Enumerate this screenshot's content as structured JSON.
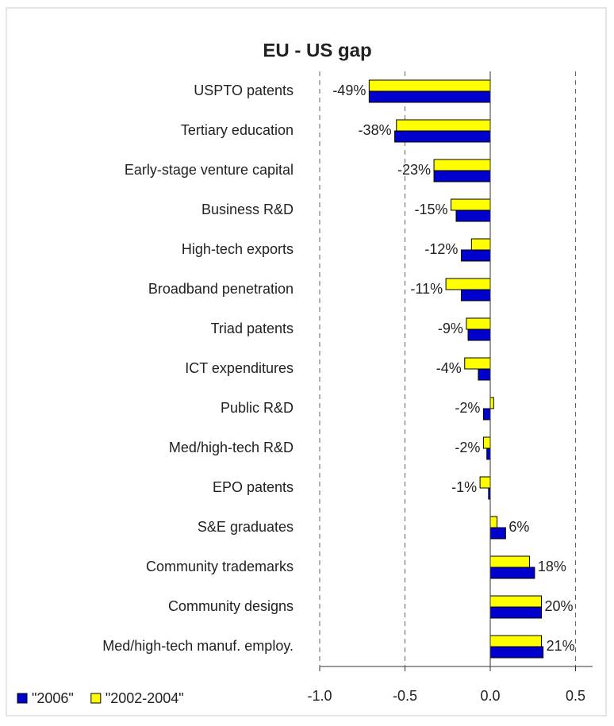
{
  "chart_data": {
    "type": "hbar",
    "title": "EU - US gap",
    "categories": [
      "USPTO patents",
      "Tertiary education",
      "Early-stage venture capital",
      "Business R&D",
      "High-tech exports",
      "Broadband penetration",
      "Triad patents",
      "ICT expenditures",
      "Public R&D",
      "Med/high-tech R&D",
      "EPO patents",
      "S&E graduates",
      "Community trademarks",
      "Community designs",
      "Med/high-tech manuf. employ."
    ],
    "series": [
      {
        "name": "\"2006\"",
        "color": "#0000cc",
        "values": [
          -0.71,
          -0.56,
          -0.33,
          -0.2,
          -0.17,
          -0.17,
          -0.13,
          -0.07,
          -0.04,
          -0.02,
          -0.01,
          0.09,
          0.26,
          0.3,
          0.31
        ]
      },
      {
        "name": "\"2002-2004\"",
        "color": "#ffff00",
        "values": [
          -0.71,
          -0.55,
          -0.33,
          -0.23,
          -0.11,
          -0.26,
          -0.14,
          -0.15,
          0.02,
          -0.04,
          -0.06,
          0.04,
          0.23,
          0.3,
          0.3
        ]
      }
    ],
    "annotations": [
      "-49%",
      "-38%",
      "-23%",
      "-15%",
      "-12%",
      "-11%",
      "-9%",
      "-4%",
      "-2%",
      "-2%",
      "-1%",
      "6%",
      "18%",
      "20%",
      "21%"
    ],
    "xlim": [
      -1,
      0.6
    ],
    "xticks": [
      {
        "value": -1,
        "label": "-1.0"
      },
      -0.5,
      {
        "value": 0,
        "label": "0.0"
      },
      0.5
    ],
    "grid": true,
    "legend": "bottom-left"
  }
}
